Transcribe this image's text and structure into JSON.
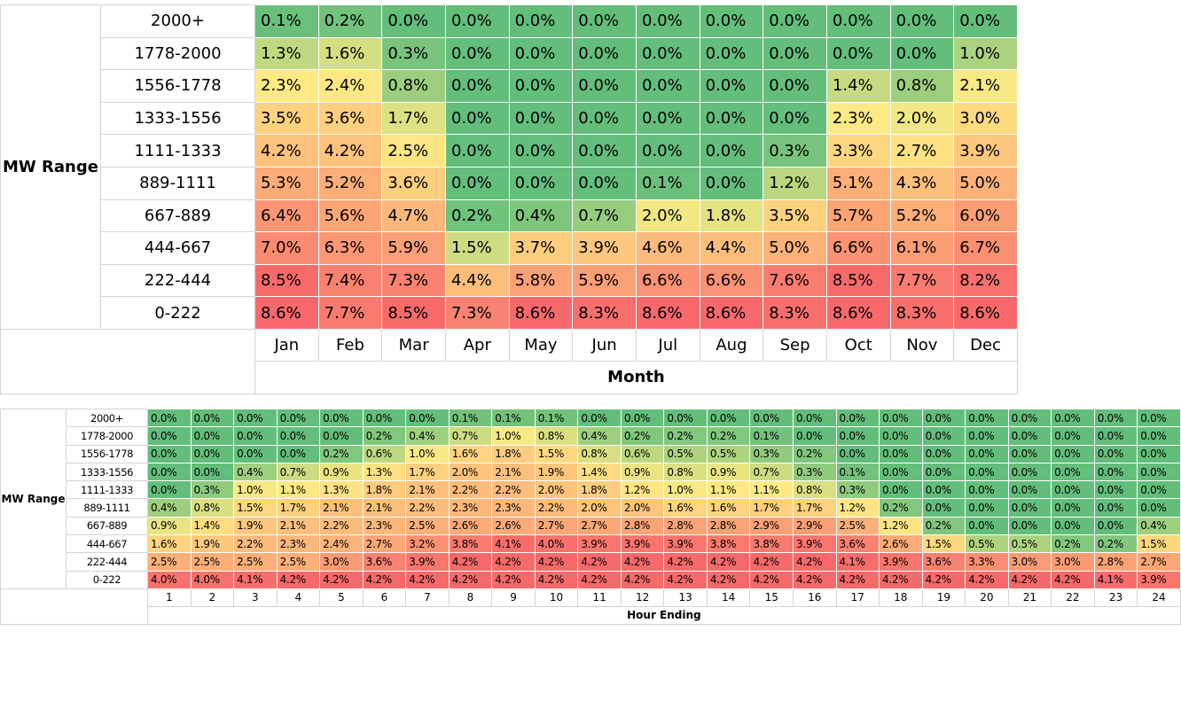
{
  "tables": [
    {
      "row_header": "MW Range",
      "column_header": "Month",
      "columns": [
        "Jan",
        "Feb",
        "Mar",
        "Apr",
        "May",
        "Jun",
        "Jul",
        "Aug",
        "Sep",
        "Oct",
        "Nov",
        "Dec"
      ],
      "rows": [
        {
          "label": "2000+",
          "cells": [
            "0.1%",
            "0.2%",
            "0.0%",
            "0.0%",
            "0.0%",
            "0.0%",
            "0.0%",
            "0.0%",
            "0.0%",
            "0.0%",
            "0.0%",
            "0.0%"
          ]
        },
        {
          "label": "1778-2000",
          "cells": [
            "1.3%",
            "1.6%",
            "0.3%",
            "0.0%",
            "0.0%",
            "0.0%",
            "0.0%",
            "0.0%",
            "0.0%",
            "0.0%",
            "0.0%",
            "1.0%"
          ]
        },
        {
          "label": "1556-1778",
          "cells": [
            "2.3%",
            "2.4%",
            "0.8%",
            "0.0%",
            "0.0%",
            "0.0%",
            "0.0%",
            "0.0%",
            "0.0%",
            "1.4%",
            "0.8%",
            "2.1%"
          ]
        },
        {
          "label": "1333-1556",
          "cells": [
            "3.5%",
            "3.6%",
            "1.7%",
            "0.0%",
            "0.0%",
            "0.0%",
            "0.0%",
            "0.0%",
            "0.0%",
            "2.3%",
            "2.0%",
            "3.0%"
          ]
        },
        {
          "label": "1111-1333",
          "cells": [
            "4.2%",
            "4.2%",
            "2.5%",
            "0.0%",
            "0.0%",
            "0.0%",
            "0.0%",
            "0.0%",
            "0.3%",
            "3.3%",
            "2.7%",
            "3.9%"
          ]
        },
        {
          "label": "889-1111",
          "cells": [
            "5.3%",
            "5.2%",
            "3.6%",
            "0.0%",
            "0.0%",
            "0.0%",
            "0.1%",
            "0.0%",
            "1.2%",
            "5.1%",
            "4.3%",
            "5.0%"
          ]
        },
        {
          "label": "667-889",
          "cells": [
            "6.4%",
            "5.6%",
            "4.7%",
            "0.2%",
            "0.4%",
            "0.7%",
            "2.0%",
            "1.8%",
            "3.5%",
            "5.7%",
            "5.2%",
            "6.0%"
          ]
        },
        {
          "label": "444-667",
          "cells": [
            "7.0%",
            "6.3%",
            "5.9%",
            "1.5%",
            "3.7%",
            "3.9%",
            "4.6%",
            "4.4%",
            "5.0%",
            "6.6%",
            "6.1%",
            "6.7%"
          ]
        },
        {
          "label": "222-444",
          "cells": [
            "8.5%",
            "7.4%",
            "7.3%",
            "4.4%",
            "5.8%",
            "5.9%",
            "6.6%",
            "6.6%",
            "7.6%",
            "8.5%",
            "7.7%",
            "8.2%"
          ]
        },
        {
          "label": "0-222",
          "cells": [
            "8.6%",
            "7.7%",
            "8.5%",
            "7.3%",
            "8.6%",
            "8.3%",
            "8.6%",
            "8.6%",
            "8.3%",
            "8.6%",
            "8.3%",
            "8.6%"
          ]
        }
      ]
    },
    {
      "row_header": "MW Range",
      "column_header": "Hour Ending",
      "columns": [
        "1",
        "2",
        "3",
        "4",
        "5",
        "6",
        "7",
        "8",
        "9",
        "10",
        "11",
        "12",
        "13",
        "14",
        "15",
        "16",
        "17",
        "18",
        "19",
        "20",
        "21",
        "22",
        "23",
        "24"
      ],
      "rows": [
        {
          "label": "2000+",
          "cells": [
            "0.0%",
            "0.0%",
            "0.0%",
            "0.0%",
            "0.0%",
            "0.0%",
            "0.0%",
            "0.1%",
            "0.1%",
            "0.1%",
            "0.0%",
            "0.0%",
            "0.0%",
            "0.0%",
            "0.0%",
            "0.0%",
            "0.0%",
            "0.0%",
            "0.0%",
            "0.0%",
            "0.0%",
            "0.0%",
            "0.0%",
            "0.0%"
          ]
        },
        {
          "label": "1778-2000",
          "cells": [
            "0.0%",
            "0.0%",
            "0.0%",
            "0.0%",
            "0.0%",
            "0.2%",
            "0.4%",
            "0.7%",
            "1.0%",
            "0.8%",
            "0.4%",
            "0.2%",
            "0.2%",
            "0.2%",
            "0.1%",
            "0.0%",
            "0.0%",
            "0.0%",
            "0.0%",
            "0.0%",
            "0.0%",
            "0.0%",
            "0.0%",
            "0.0%"
          ]
        },
        {
          "label": "1556-1778",
          "cells": [
            "0.0%",
            "0.0%",
            "0.0%",
            "0.0%",
            "0.2%",
            "0.6%",
            "1.0%",
            "1.6%",
            "1.8%",
            "1.5%",
            "0.8%",
            "0.6%",
            "0.5%",
            "0.5%",
            "0.3%",
            "0.2%",
            "0.0%",
            "0.0%",
            "0.0%",
            "0.0%",
            "0.0%",
            "0.0%",
            "0.0%",
            "0.0%"
          ]
        },
        {
          "label": "1333-1556",
          "cells": [
            "0.0%",
            "0.0%",
            "0.4%",
            "0.7%",
            "0.9%",
            "1.3%",
            "1.7%",
            "2.0%",
            "2.1%",
            "1.9%",
            "1.4%",
            "0.9%",
            "0.8%",
            "0.9%",
            "0.7%",
            "0.3%",
            "0.1%",
            "0.0%",
            "0.0%",
            "0.0%",
            "0.0%",
            "0.0%",
            "0.0%",
            "0.0%"
          ]
        },
        {
          "label": "1111-1333",
          "cells": [
            "0.0%",
            "0.3%",
            "1.0%",
            "1.1%",
            "1.3%",
            "1.8%",
            "2.1%",
            "2.2%",
            "2.2%",
            "2.0%",
            "1.8%",
            "1.2%",
            "1.0%",
            "1.1%",
            "1.1%",
            "0.8%",
            "0.3%",
            "0.0%",
            "0.0%",
            "0.0%",
            "0.0%",
            "0.0%",
            "0.0%",
            "0.0%"
          ]
        },
        {
          "label": "889-1111",
          "cells": [
            "0.4%",
            "0.8%",
            "1.5%",
            "1.7%",
            "2.1%",
            "2.1%",
            "2.2%",
            "2.3%",
            "2.3%",
            "2.2%",
            "2.0%",
            "2.0%",
            "1.6%",
            "1.6%",
            "1.7%",
            "1.7%",
            "1.2%",
            "0.2%",
            "0.0%",
            "0.0%",
            "0.0%",
            "0.0%",
            "0.0%",
            "0.0%"
          ]
        },
        {
          "label": "667-889",
          "cells": [
            "0.9%",
            "1.4%",
            "1.9%",
            "2.1%",
            "2.2%",
            "2.3%",
            "2.5%",
            "2.6%",
            "2.6%",
            "2.7%",
            "2.7%",
            "2.8%",
            "2.8%",
            "2.8%",
            "2.9%",
            "2.9%",
            "2.5%",
            "1.2%",
            "0.2%",
            "0.0%",
            "0.0%",
            "0.0%",
            "0.0%",
            "0.4%"
          ]
        },
        {
          "label": "444-667",
          "cells": [
            "1.6%",
            "1.9%",
            "2.2%",
            "2.3%",
            "2.4%",
            "2.7%",
            "3.2%",
            "3.8%",
            "4.1%",
            "4.0%",
            "3.9%",
            "3.9%",
            "3.9%",
            "3.8%",
            "3.8%",
            "3.9%",
            "3.6%",
            "2.6%",
            "1.5%",
            "0.5%",
            "0.5%",
            "0.2%",
            "0.2%",
            "1.5%"
          ]
        },
        {
          "label": "222-444",
          "cells": [
            "2.5%",
            "2.5%",
            "2.5%",
            "2.5%",
            "3.0%",
            "3.6%",
            "3.9%",
            "4.2%",
            "4.2%",
            "4.2%",
            "4.2%",
            "4.2%",
            "4.2%",
            "4.2%",
            "4.2%",
            "4.2%",
            "4.1%",
            "3.9%",
            "3.6%",
            "3.3%",
            "3.0%",
            "3.0%",
            "2.8%",
            "2.7%"
          ]
        },
        {
          "label": "0-222",
          "cells": [
            "4.0%",
            "4.0%",
            "4.1%",
            "4.2%",
            "4.2%",
            "4.2%",
            "4.2%",
            "4.2%",
            "4.2%",
            "4.2%",
            "4.2%",
            "4.2%",
            "4.2%",
            "4.2%",
            "4.2%",
            "4.2%",
            "4.2%",
            "4.2%",
            "4.2%",
            "4.2%",
            "4.2%",
            "4.2%",
            "4.1%",
            "3.9%"
          ]
        }
      ]
    }
  ]
}
